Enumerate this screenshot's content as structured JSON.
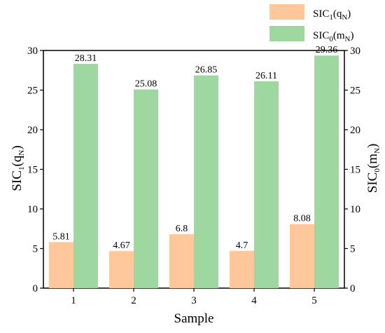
{
  "chart_data": {
    "type": "bar",
    "title": "",
    "categories": [
      "1",
      "2",
      "3",
      "4",
      "5"
    ],
    "xlabel": "Sample",
    "ylabel_left": {
      "base": "SIC",
      "sub1": "1",
      "mid": "(q",
      "sub2": "N",
      "end": ")"
    },
    "ylabel_right": {
      "base": "SIC",
      "sub1": "0",
      "mid": "(m",
      "sub2": "N",
      "end": ")"
    },
    "ylim": [
      0,
      30
    ],
    "yticks": [
      "0",
      "5",
      "10",
      "15",
      "20",
      "25",
      "30"
    ],
    "grid": false,
    "legend_position": "top-right",
    "series": [
      {
        "name": {
          "base": "SIC",
          "sub1": "1",
          "mid": "(q",
          "sub2": "N",
          "end": ")"
        },
        "color": "#ffc79a",
        "values": [
          5.81,
          4.67,
          6.8,
          4.7,
          8.08
        ],
        "labels": [
          "5.81",
          "4.67",
          "6.8",
          "4.7",
          "8.08"
        ]
      },
      {
        "name": {
          "base": "SIC",
          "sub1": "0",
          "mid": "(m",
          "sub2": "N",
          "end": ")"
        },
        "color": "#9fd7a0",
        "values": [
          28.31,
          25.08,
          26.85,
          26.11,
          29.36
        ],
        "labels": [
          "28.31",
          "25.08",
          "26.85",
          "26.11",
          "29.36"
        ]
      }
    ]
  }
}
